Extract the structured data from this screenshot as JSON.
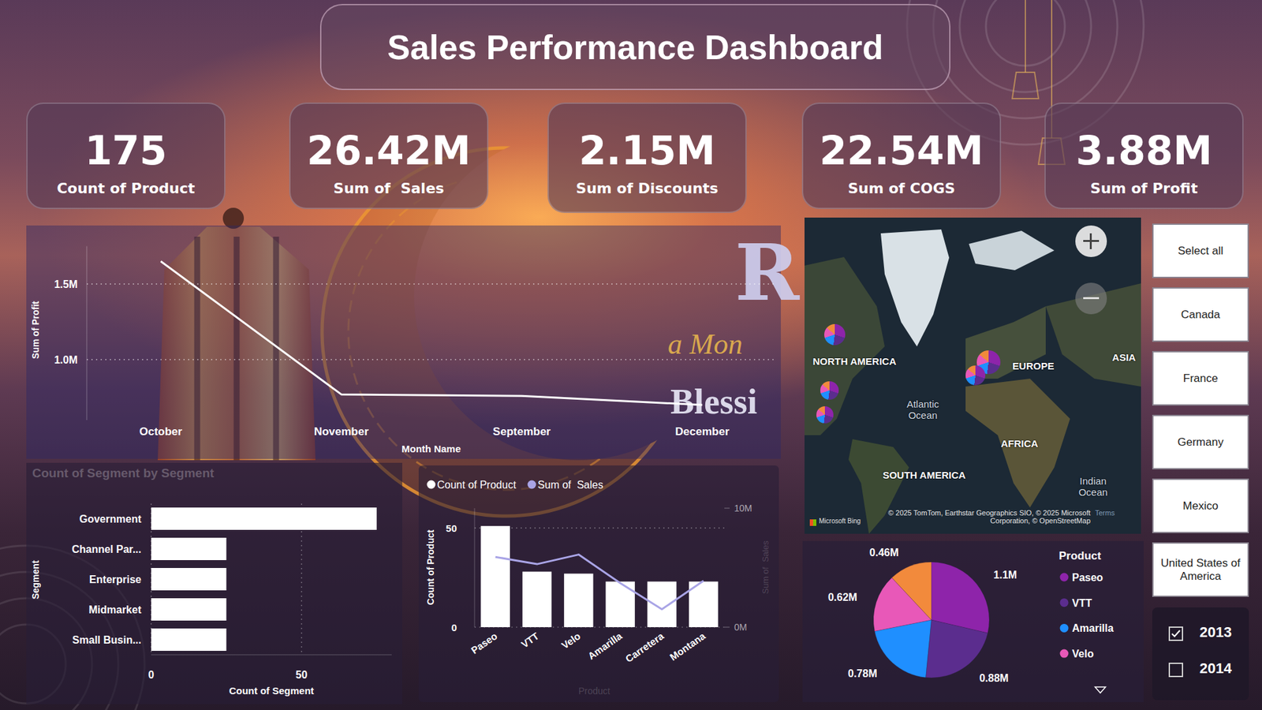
{
  "header": {
    "title": "Sales Performance Dashboard"
  },
  "kpis": [
    {
      "value": "175",
      "label": "Count of Product"
    },
    {
      "value": "26.42M",
      "label": "Sum of  Sales"
    },
    {
      "value": "2.15M",
      "label": "Sum of Discounts"
    },
    {
      "value": "22.54M",
      "label": "Sum of COGS"
    },
    {
      "value": "3.88M",
      "label": "Sum of Profit"
    }
  ],
  "background_text": [
    "R",
    "a Mon",
    "Blessi"
  ],
  "map": {
    "labels": [
      "NORTH AMERICA",
      "EUROPE",
      "ASIA",
      "Atlantic Ocean",
      "AFRICA",
      "SOUTH AMERICA",
      "Indian Ocean"
    ],
    "attribution": "© 2025 TomTom, Earthstar Geographics SIO, © 2025 Microsoft Corporation, © OpenStreetMap",
    "terms": "Terms",
    "provider": "Microsoft Bing"
  },
  "country_slicer": [
    "Select all",
    "Canada",
    "France",
    "Germany",
    "Mexico",
    "United States of America"
  ],
  "year_slicer": [
    {
      "label": "2013",
      "checked": true
    },
    {
      "label": "2014",
      "checked": false
    }
  ],
  "chart_data": [
    {
      "type": "line",
      "x_label": "Month Name",
      "y_label": "Sum of Profit",
      "categories": [
        "October",
        "November",
        "September",
        "December"
      ],
      "values": [
        1650000,
        770000,
        760000,
        700000
      ],
      "color": "#ffffff",
      "ylim": [
        600000,
        1750000
      ],
      "yticks": [
        {
          "value": 1000000,
          "label": "1.0M"
        },
        {
          "value": 1500000,
          "label": "1.5M"
        }
      ],
      "grid": true
    },
    {
      "type": "bar",
      "orientation": "horizontal",
      "title": "Count of Segment by Segment",
      "x_label": "Count of Segment",
      "y_label": "Segment",
      "categories": [
        "Government",
        "Channel Par...",
        "Enterprise",
        "Midmarket",
        "Small Busin..."
      ],
      "values": [
        75,
        25,
        25,
        25,
        25
      ],
      "color": "#ffffff",
      "xlim": [
        0,
        80
      ],
      "xticks": [
        0,
        50
      ],
      "grid": true
    },
    {
      "type": "bar",
      "x_label": "Product",
      "y_label": "Count of Product",
      "y2_label": "Sum of  Sales",
      "categories": [
        "Paseo",
        "VTT",
        "Velo",
        "Amarilla",
        "Carretera",
        "Montana"
      ],
      "series": [
        {
          "name": "Count of Product",
          "type": "bar",
          "color": "#ffffff",
          "values": [
            51,
            28,
            27,
            23,
            23,
            23
          ]
        },
        {
          "name": "Sum of  Sales",
          "type": "line",
          "axis": "y2",
          "color": "#a9a4e6",
          "values": [
            5900000,
            5300000,
            6100000,
            3700000,
            1500000,
            3900000
          ]
        }
      ],
      "ylim": [
        0,
        60
      ],
      "yticks": [
        0,
        50
      ],
      "y2lim": [
        0,
        10000000
      ],
      "y2ticks": [
        {
          "value": 0,
          "label": "0M"
        },
        {
          "value": 10000000,
          "label": "10M"
        }
      ],
      "legend": "top",
      "grid": true
    },
    {
      "type": "pie",
      "legend_title": "Product",
      "categories": [
        "Paseo",
        "VTT",
        "Amarilla",
        "Velo",
        null
      ],
      "values": [
        1100000,
        880000,
        780000,
        620000,
        460000
      ],
      "value_labels": [
        "1.1M",
        "0.88M",
        "0.78M",
        "0.62M",
        "0.46M"
      ],
      "colors": [
        "#8e24aa",
        "#5b2d8e",
        "#1f8fff",
        "#e858b8",
        "#f28a3c"
      ],
      "data_labels": true,
      "legend": "right"
    }
  ]
}
